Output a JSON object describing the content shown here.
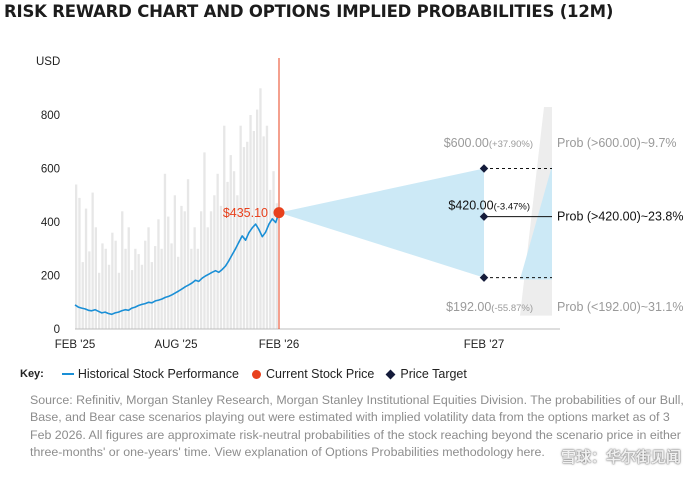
{
  "title": "RISK REWARD CHART AND OPTIONS IMPLIED PROBABILITIES (12M)",
  "colors": {
    "history_line": "#1a8fd6",
    "current_dot": "#e8411d",
    "current_line": "#e8411d",
    "current_label": "#e8411d",
    "fan": "#cce9f6",
    "volume_bars": "#e7e7e7",
    "target_diamond": "#141b3a",
    "muted_text": "#9a9a9a"
  },
  "chart_data": {
    "type": "line",
    "ylabel": "USD",
    "ylim": [
      0,
      1000
    ],
    "yticks": [
      0,
      200,
      400,
      600,
      800
    ],
    "xticks": [
      "FEB '25",
      "AUG '25",
      "FEB '26",
      "FEB '27"
    ],
    "grid": false,
    "history": {
      "name": "Historical Stock Performance",
      "x_start": "2025-02",
      "x_end": "2026-02",
      "y": [
        90,
        82,
        78,
        75,
        70,
        68,
        72,
        66,
        60,
        63,
        58,
        55,
        60,
        63,
        68,
        72,
        70,
        78,
        82,
        88,
        92,
        95,
        100,
        98,
        105,
        108,
        112,
        118,
        122,
        128,
        135,
        142,
        150,
        158,
        165,
        172,
        182,
        178,
        190,
        198,
        205,
        212,
        218,
        212,
        222,
        235,
        255,
        278,
        300,
        325,
        348,
        332,
        360,
        378,
        392,
        372,
        345,
        362,
        392,
        412,
        398,
        435.1
      ]
    },
    "volume_bars": [
      540,
      490,
      250,
      450,
      290,
      510,
      380,
      210,
      320,
      300,
      240,
      360,
      330,
      210,
      440,
      300,
      380,
      220,
      300,
      280,
      240,
      330,
      380,
      250,
      310,
      410,
      300,
      580,
      420,
      320,
      500,
      270,
      460,
      440,
      560,
      300,
      380,
      300,
      440,
      660,
      380,
      440,
      500,
      580,
      460,
      760,
      550,
      650,
      590,
      500,
      760,
      680,
      700,
      800,
      740,
      820,
      900,
      720,
      760,
      520,
      590,
      470
    ],
    "current": {
      "name": "Current Stock Price",
      "date": "FEB '26",
      "price": 435.1,
      "label": "$435.10"
    },
    "targets": [
      {
        "scenario": "Bull",
        "date": "FEB '27",
        "price": 600.0,
        "price_label": "$600.00",
        "change_label": "(+37.90%)",
        "prob_label": "Prob (>600.00)~9.7%"
      },
      {
        "scenario": "Base",
        "date": "FEB '27",
        "price": 420.0,
        "price_label": "$420.00",
        "change_label": "(-3.47%)",
        "prob_label": "Prob (>420.00)~23.8%"
      },
      {
        "scenario": "Bear",
        "date": "FEB '27",
        "price": 192.0,
        "price_label": "$192.00",
        "change_label": "(-55.87%)",
        "prob_label": "Prob (<192.00)~31.1%"
      }
    ],
    "target_legend_name": "Price Target",
    "probability_density": {
      "grey_range": [
        50,
        830
      ],
      "blue_range": [
        185,
        610
      ]
    }
  },
  "key": {
    "label": "Key:",
    "history": "Historical Stock Performance",
    "current": "Current Stock Price",
    "target": "Price Target"
  },
  "source": "Source: Refinitiv, Morgan Stanley Research, Morgan Stanley Institutional Equities Division. The probabilities of our Bull, Base, and Bear case scenarios playing out were estimated with implied volatility data from the options market as of 3 Feb 2026. All figures are approximate risk-neutral probabilities of the stock reaching beyond the scenario price in either three-months' or one-years' time. View explanation of Options Probabilities methodology here.",
  "watermark": "雪球：华尔街见闻"
}
